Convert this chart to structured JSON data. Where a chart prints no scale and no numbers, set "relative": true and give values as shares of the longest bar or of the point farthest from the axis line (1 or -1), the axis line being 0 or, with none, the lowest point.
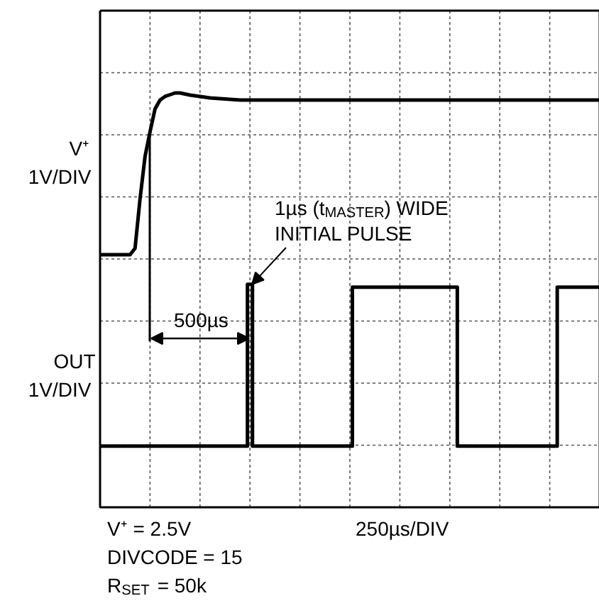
{
  "chart_data": {
    "type": "line",
    "relative": true,
    "xlabel": "250µs/DIV",
    "tick_labels": false,
    "grid": true,
    "line_style": "solid",
    "categories": [
      null,
      null,
      null,
      null,
      null,
      null,
      null,
      null,
      null,
      null,
      null,
      null,
      null,
      null,
      null,
      null,
      null,
      null,
      null,
      null,
      null,
      null,
      null,
      null,
      null,
      null,
      null,
      null,
      null,
      null,
      null,
      null,
      null,
      null,
      null,
      null,
      null,
      null,
      null,
      null,
      null,
      null,
      null,
      null,
      null,
      null,
      null,
      null,
      null,
      null,
      null,
      null,
      null,
      null,
      null,
      null,
      null,
      null,
      null,
      null,
      null,
      null,
      null,
      null,
      null,
      null,
      null,
      null,
      null,
      null,
      null,
      null,
      null,
      null,
      null,
      null,
      null,
      null,
      null,
      null,
      null,
      null,
      null,
      null,
      null,
      null,
      null,
      null,
      null,
      null,
      null,
      null,
      null,
      null,
      null,
      null,
      null,
      null,
      null,
      null,
      null
    ],
    "series": [
      {
        "name": "V⁺\n1V/DIV",
        "color": "#000000",
        "values": [
          0.542,
          0.542,
          0.542,
          0.542,
          0.542,
          0.542,
          0.542,
          0.56,
          0.7,
          0.82,
          0.89,
          0.955,
          0.98,
          0.99,
          0.995,
          1,
          1,
          0.997,
          0.994,
          0.992,
          0.99,
          0.988,
          0.986,
          0.985,
          0.984,
          0.983,
          0.982,
          0.981,
          0.98,
          0.98,
          0.98,
          0.98,
          0.98,
          0.98,
          0.98,
          0.98,
          0.98,
          0.98,
          0.98,
          0.98,
          0.98,
          0.98,
          0.98,
          0.98,
          0.98,
          0.98,
          0.98,
          0.98,
          0.98,
          0.98,
          0.98,
          0.98,
          0.98,
          0.98,
          0.98,
          0.98,
          0.98,
          0.98,
          0.98,
          0.98,
          0.98,
          0.98,
          0.98,
          0.98,
          0.98,
          0.98,
          0.98,
          0.98,
          0.98,
          0.98,
          0.98,
          0.98,
          0.98,
          0.98,
          0.98,
          0.98,
          0.98,
          0.98,
          0.98,
          0.98,
          0.98,
          0.98,
          0.98,
          0.98,
          0.98,
          0.98,
          0.98,
          0.98,
          0.98,
          0.98,
          0.98,
          0.98,
          0.98,
          0.98,
          0.98,
          0.98,
          0.98,
          0.98,
          0.98,
          0.98,
          0.98
        ]
      },
      {
        "name": "OUT\n1V/DIV",
        "type": "step",
        "color": "#000000",
        "values": [
          0,
          0,
          0,
          0,
          0,
          0,
          0,
          0,
          0,
          0,
          0,
          0,
          0,
          0,
          0,
          0,
          0,
          0,
          0,
          0,
          0,
          0,
          0,
          0,
          0,
          0,
          0,
          0,
          0,
          0,
          0.458,
          0,
          0,
          0,
          0,
          0,
          0,
          0,
          0,
          0,
          0,
          0,
          0,
          0,
          0,
          0,
          0,
          0,
          0,
          0,
          0,
          0.45,
          0.45,
          0.45,
          0.45,
          0.45,
          0.45,
          0.45,
          0.45,
          0.45,
          0.45,
          0.45,
          0.45,
          0.45,
          0.45,
          0.45,
          0.45,
          0.45,
          0.45,
          0.45,
          0.45,
          0.45,
          0,
          0,
          0,
          0,
          0,
          0,
          0,
          0,
          0,
          0,
          0,
          0,
          0,
          0,
          0,
          0,
          0,
          0,
          0,
          0,
          0.45,
          0.45,
          0.45,
          0.45,
          0.45,
          0.45,
          0.45,
          0.45,
          0.45
        ]
      }
    ],
    "annotations": [
      {
        "text": "1µs (t$_{MASTER}$) WIDE\nINITIAL PULSE",
        "y": 0.458
      },
      "500µs",
      "V⁺ = 2.5V\nDIVCODE = 15\nR$_{SET}$ = 50k"
    ]
  }
}
